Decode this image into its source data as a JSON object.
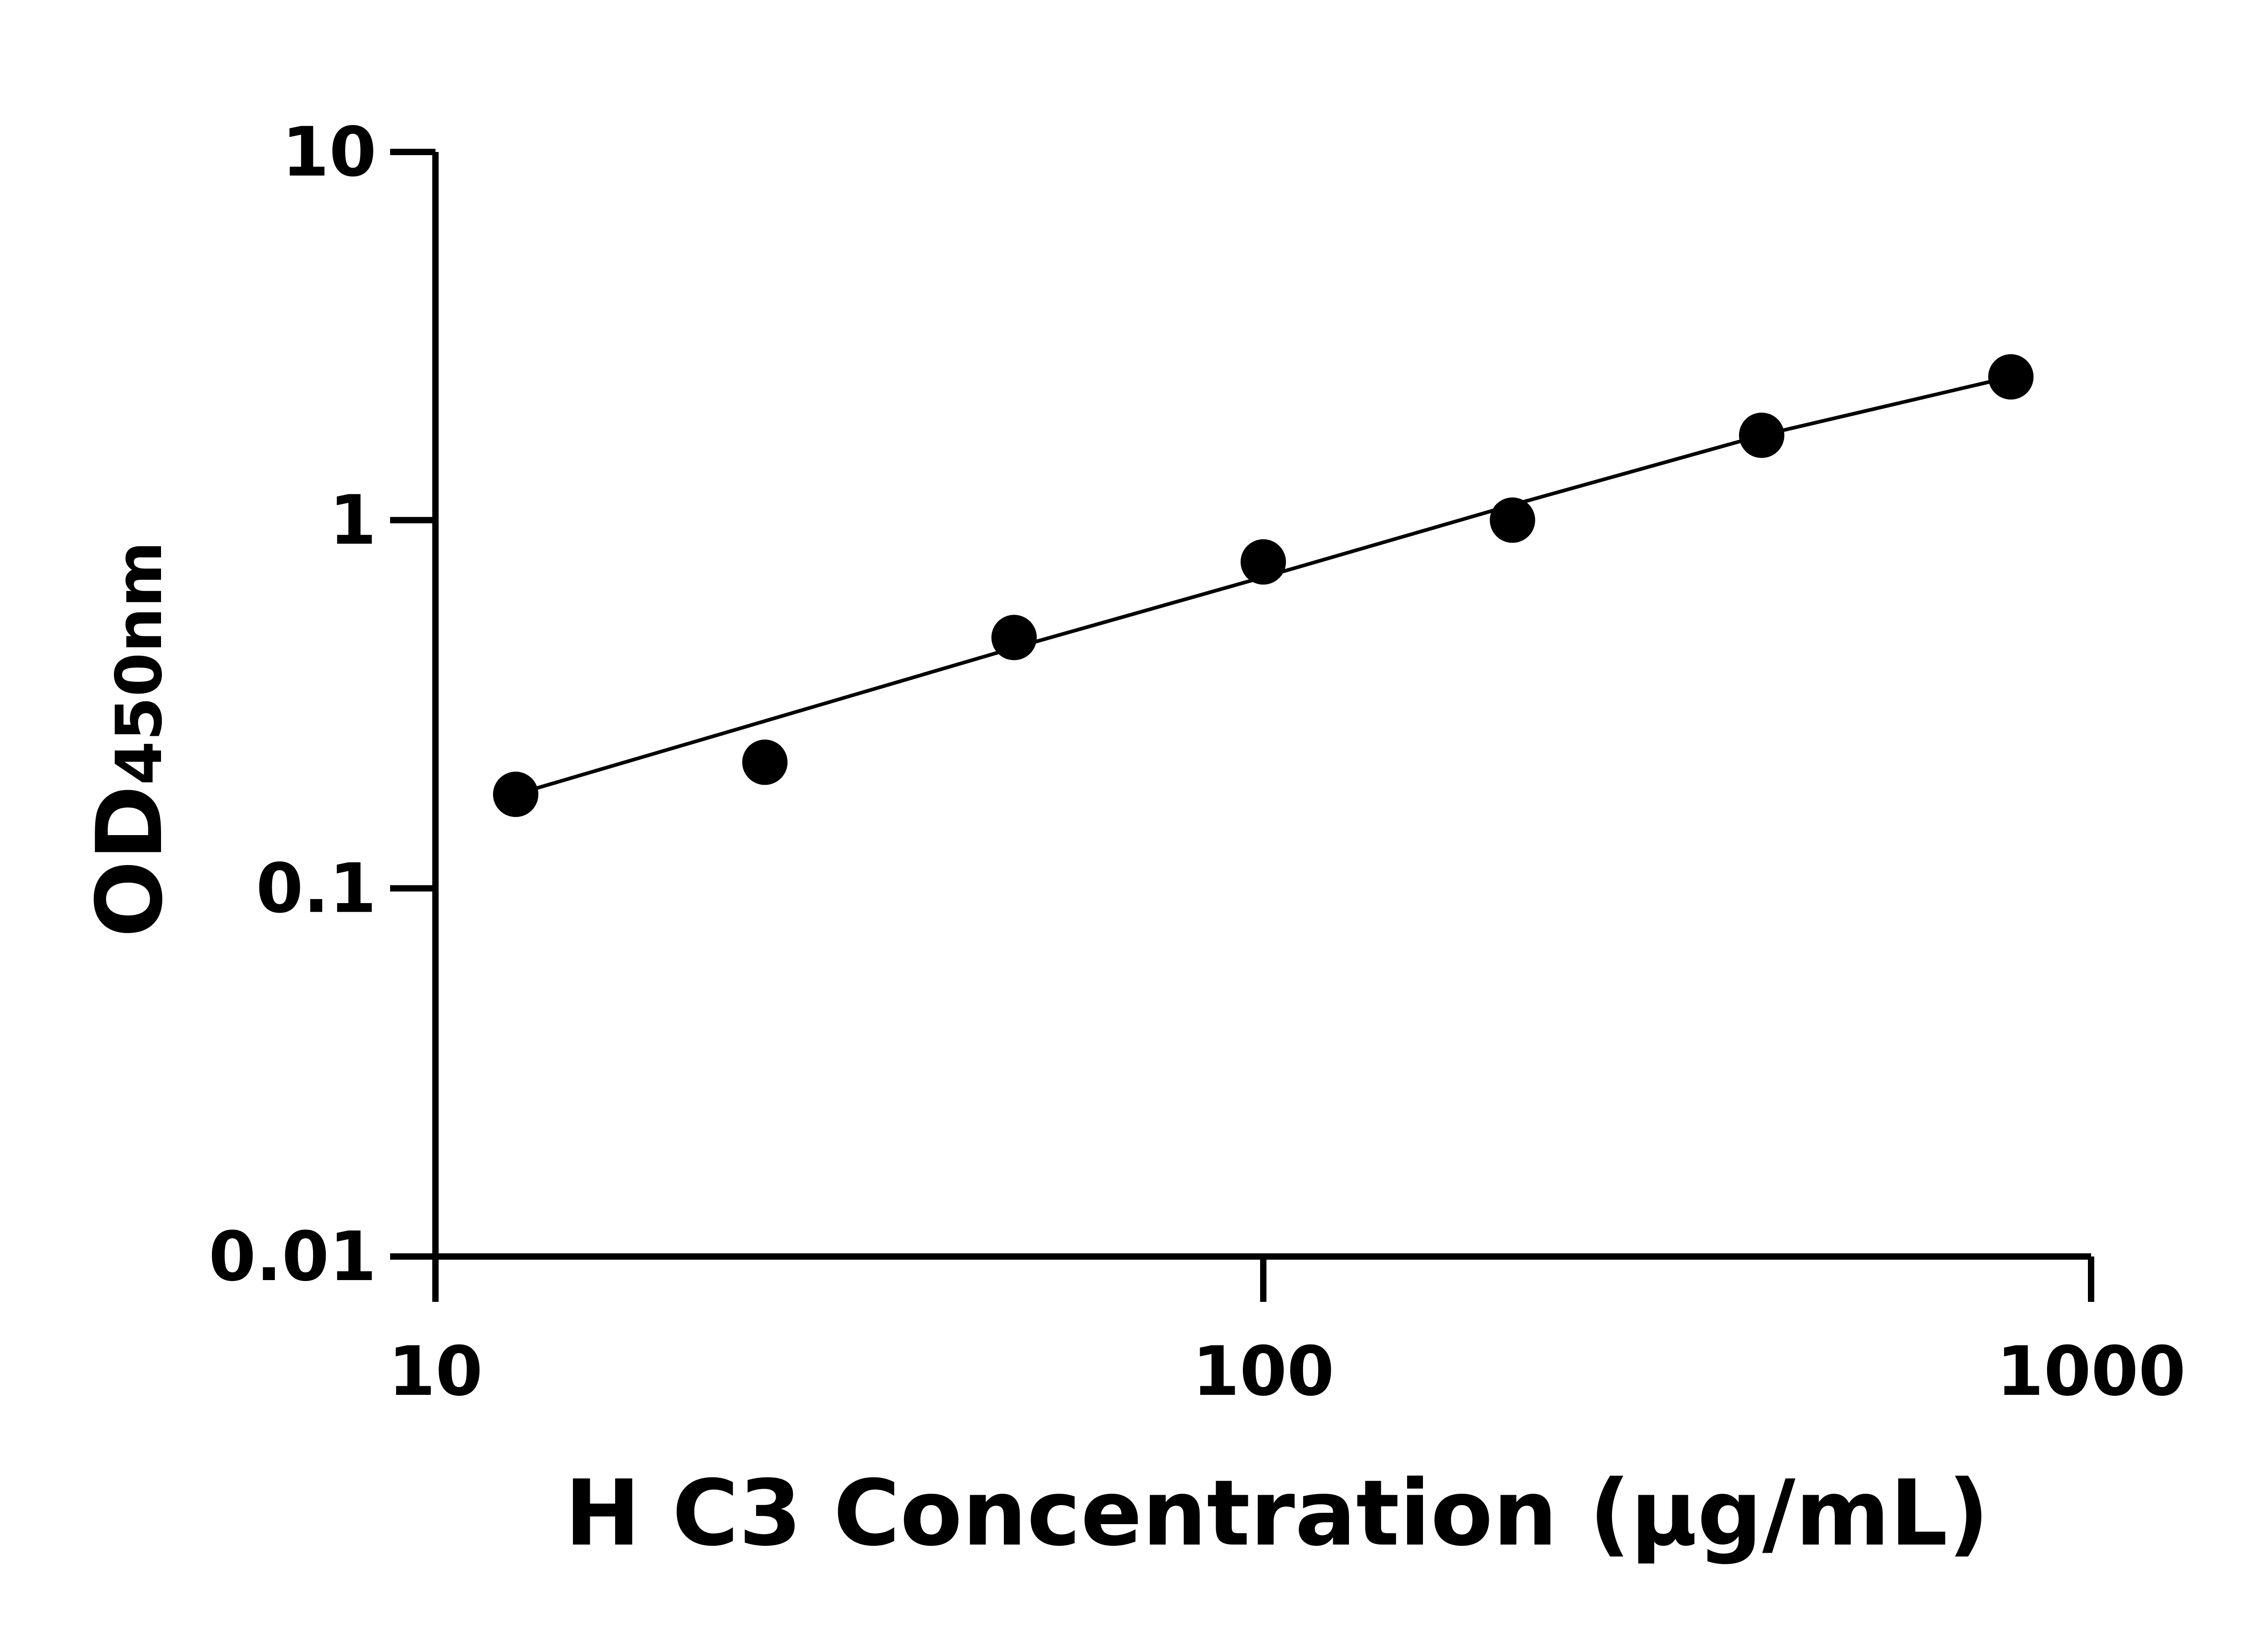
{
  "chart_data": {
    "type": "scatter",
    "x_scale": "log",
    "y_scale": "log",
    "xlim": [
      10,
      1000
    ],
    "ylim": [
      0.01,
      10
    ],
    "x_ticks": [
      "10",
      "100",
      "1000"
    ],
    "y_ticks": [
      "10",
      "1",
      "0.1",
      "0.01"
    ],
    "xlabel": "H C3 Concentration (μg/mL)",
    "ylabel_main": "OD",
    "ylabel_sub": "450nm",
    "grid": false,
    "series": [
      {
        "points": [
          {
            "x": 12.5,
            "y": 0.18
          },
          {
            "x": 25,
            "y": 0.22
          },
          {
            "x": 50,
            "y": 0.48
          },
          {
            "x": 100,
            "y": 0.77
          },
          {
            "x": 200,
            "y": 1.0
          },
          {
            "x": 400,
            "y": 1.7
          },
          {
            "x": 800,
            "y": 2.45
          }
        ],
        "fit_line": [
          {
            "x": 12.5,
            "y": 0.18
          },
          {
            "x": 50,
            "y": 0.45
          },
          {
            "x": 100,
            "y": 0.7
          },
          {
            "x": 200,
            "y": 1.1
          },
          {
            "x": 400,
            "y": 1.7
          },
          {
            "x": 800,
            "y": 2.45
          }
        ]
      }
    ]
  }
}
